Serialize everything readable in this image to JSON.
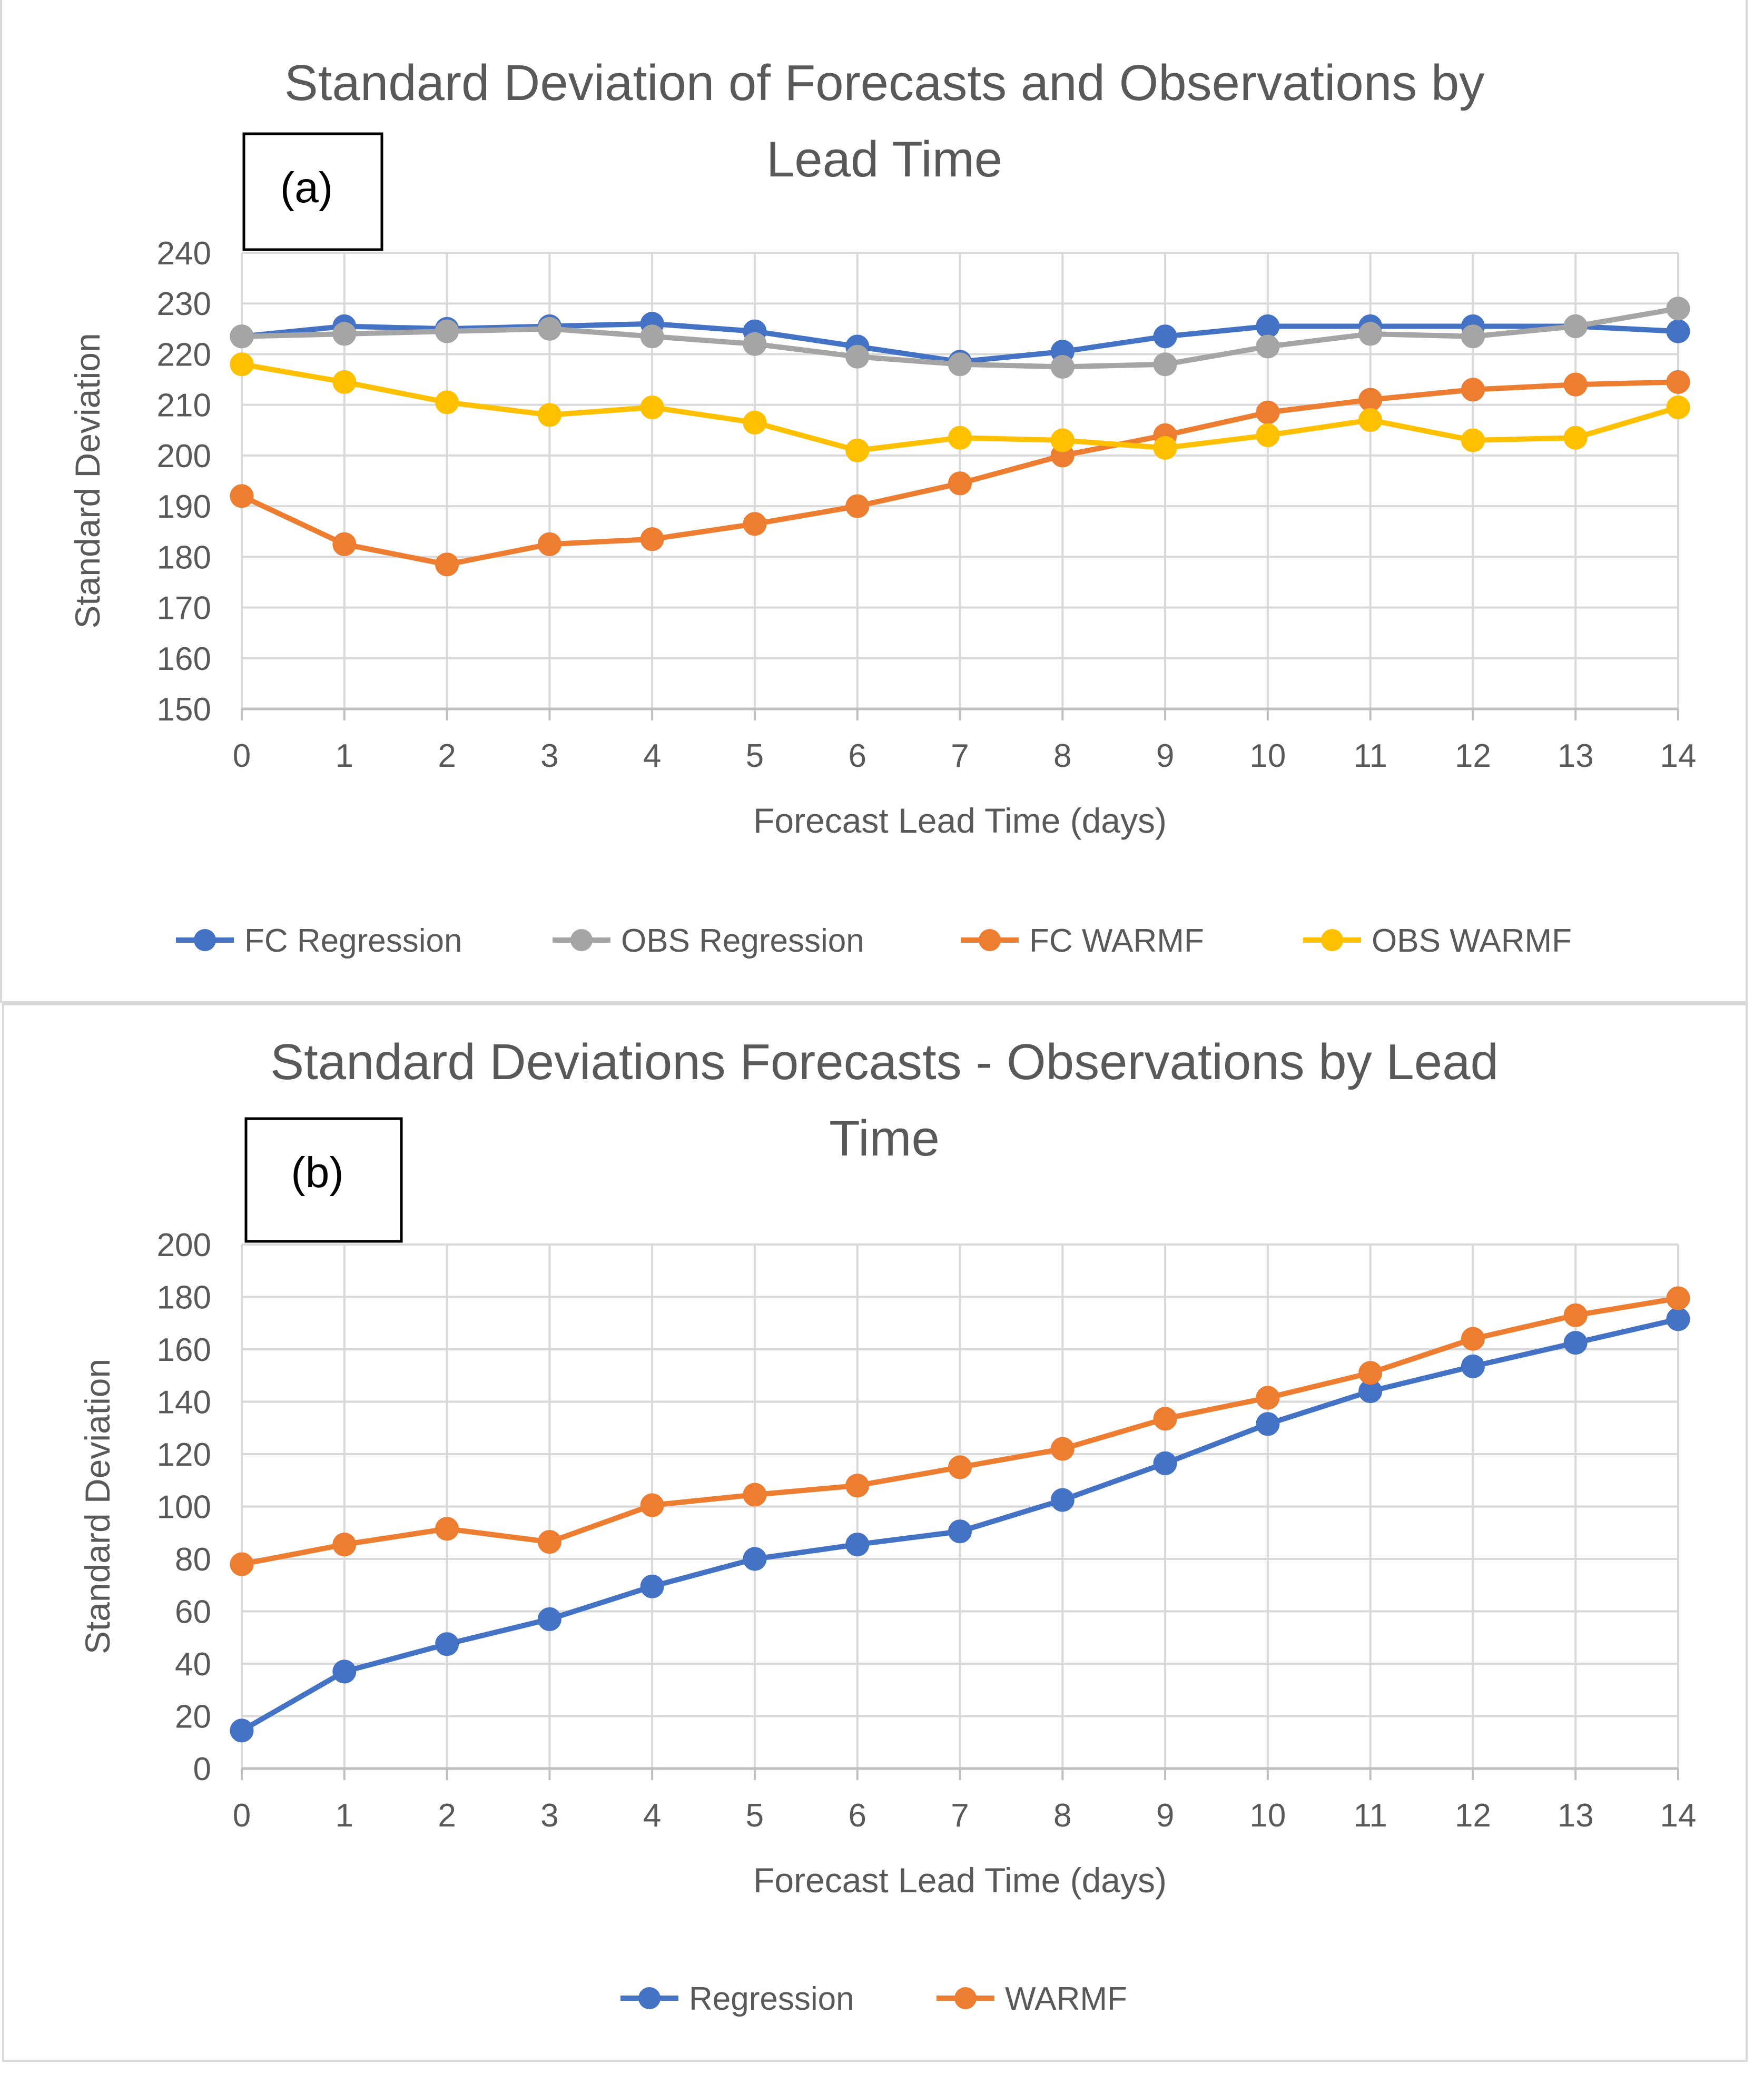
{
  "chart_data": [
    {
      "type": "line",
      "panel_label": "(a)",
      "title": [
        "Standard Deviation of Forecasts and Observations by",
        "Lead Time"
      ],
      "xlabel": "Forecast Lead Time (days)",
      "ylabel": "Standard Deviation",
      "ylim": [
        150,
        240
      ],
      "yticks": [
        150,
        160,
        170,
        180,
        190,
        200,
        210,
        220,
        230,
        240
      ],
      "x": [
        0,
        1,
        2,
        3,
        4,
        5,
        6,
        7,
        8,
        9,
        10,
        11,
        12,
        13,
        14
      ],
      "grid": true,
      "legend": "bottom",
      "series": [
        {
          "name": "FC Regression",
          "color": "#4472c4",
          "values": [
            223.5,
            225.5,
            225,
            225.5,
            226,
            224.5,
            221.5,
            218.5,
            220.5,
            223.5,
            225.5,
            225.5,
            225.5,
            225.5,
            224.5
          ]
        },
        {
          "name": "OBS Regression",
          "color": "#a5a5a5",
          "values": [
            223.5,
            224,
            224.5,
            225,
            223.5,
            222,
            219.5,
            218,
            217.5,
            218,
            221.5,
            224,
            223.5,
            225.5,
            229
          ]
        },
        {
          "name": "FC WARMF",
          "color": "#ed7d31",
          "values": [
            192,
            182.5,
            178.5,
            182.5,
            183.5,
            186.5,
            190,
            194.5,
            200,
            204,
            208.5,
            211,
            213,
            214,
            214.5
          ]
        },
        {
          "name": "OBS WARMF",
          "color": "#ffc000",
          "values": [
            218,
            214.5,
            210.5,
            208,
            209.5,
            206.5,
            201,
            203.5,
            203,
            201.5,
            204,
            207,
            203,
            203.5,
            209.5
          ]
        }
      ]
    },
    {
      "type": "line",
      "panel_label": "(b)",
      "title": [
        "Standard Deviations Forecasts - Observations by Lead",
        "Time"
      ],
      "xlabel": "Forecast Lead Time (days)",
      "ylabel": "Standard Deviation",
      "ylim": [
        0,
        200
      ],
      "yticks": [
        0,
        20,
        40,
        60,
        80,
        100,
        120,
        140,
        160,
        180,
        200
      ],
      "x": [
        0,
        1,
        2,
        3,
        4,
        5,
        6,
        7,
        8,
        9,
        10,
        11,
        12,
        13,
        14
      ],
      "grid": true,
      "legend": "bottom",
      "series": [
        {
          "name": "Regression",
          "color": "#4472c4",
          "values": [
            14.5,
            37,
            47.5,
            57,
            69.5,
            80,
            85.5,
            90.5,
            102.5,
            116.5,
            131.5,
            144,
            153.5,
            162.5,
            171.5
          ]
        },
        {
          "name": "WARMF",
          "color": "#ed7d31",
          "values": [
            78,
            85.5,
            91.5,
            86.5,
            100.5,
            104.5,
            108,
            115,
            122,
            133.5,
            141.5,
            151,
            164,
            173,
            179.5
          ]
        }
      ]
    }
  ]
}
